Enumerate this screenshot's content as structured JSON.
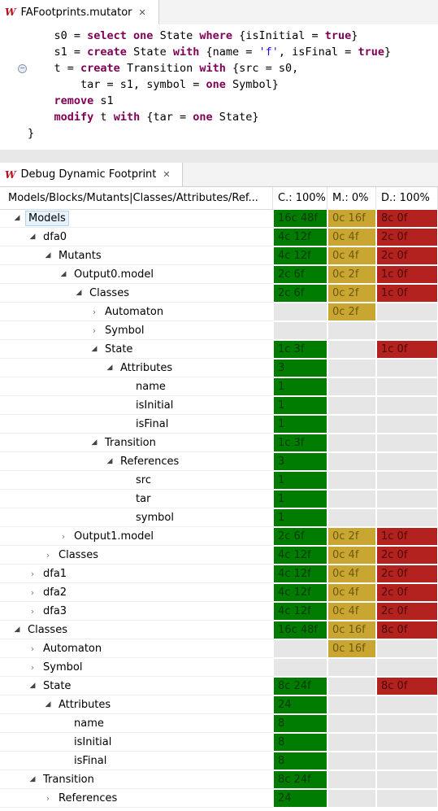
{
  "editor": {
    "tab_title": "FAFootprints.mutator",
    "lines": [
      [
        {
          "t": "    s0 = ",
          "c": ""
        },
        {
          "t": "select one",
          "c": "kw"
        },
        {
          "t": " State ",
          "c": ""
        },
        {
          "t": "where",
          "c": "kw"
        },
        {
          "t": " {isInitial = ",
          "c": ""
        },
        {
          "t": "true",
          "c": "kw"
        },
        {
          "t": "}",
          "c": ""
        }
      ],
      [
        {
          "t": "    s1 = ",
          "c": ""
        },
        {
          "t": "create",
          "c": "kw"
        },
        {
          "t": " State ",
          "c": ""
        },
        {
          "t": "with",
          "c": "kw"
        },
        {
          "t": " {name = ",
          "c": ""
        },
        {
          "t": "'f'",
          "c": "str"
        },
        {
          "t": ", isFinal = ",
          "c": ""
        },
        {
          "t": "true",
          "c": "kw"
        },
        {
          "t": "}",
          "c": ""
        }
      ],
      [
        {
          "t": "    t = ",
          "c": ""
        },
        {
          "t": "create",
          "c": "kw"
        },
        {
          "t": " Transition ",
          "c": ""
        },
        {
          "t": "with",
          "c": "kw"
        },
        {
          "t": " {src = s0,",
          "c": ""
        }
      ],
      [
        {
          "t": "        tar = s1, symbol = ",
          "c": ""
        },
        {
          "t": "one",
          "c": "kw"
        },
        {
          "t": " Symbol}",
          "c": ""
        }
      ],
      [
        {
          "t": "    ",
          "c": ""
        },
        {
          "t": "remove",
          "c": "kw"
        },
        {
          "t": " s1",
          "c": ""
        }
      ],
      [
        {
          "t": "    ",
          "c": ""
        },
        {
          "t": "modify",
          "c": "kw"
        },
        {
          "t": " t ",
          "c": ""
        },
        {
          "t": "with",
          "c": "kw"
        },
        {
          "t": " {tar = ",
          "c": ""
        },
        {
          "t": "one",
          "c": "kw"
        },
        {
          "t": " State}",
          "c": ""
        }
      ],
      [
        {
          "t": "}",
          "c": ""
        }
      ]
    ]
  },
  "view": {
    "tab_title": "Debug Dynamic Footprint",
    "columns": {
      "name": "Models/Blocks/Mutants|Classes/Attributes/Ref...",
      "c": "C.: 100%",
      "m": "M.: 0%",
      "d": "D.: 100%"
    }
  },
  "colors": {
    "green": "#007d00",
    "yellow": "#c8a631",
    "red": "#b3221f",
    "empty": "#e6e6e6"
  },
  "rows": [
    {
      "name": "Models",
      "depth": 0,
      "tw": "open",
      "selected": true,
      "c": "16c 48f",
      "m": "0c 16f",
      "d": "8c 0f"
    },
    {
      "name": "dfa0",
      "depth": 1,
      "tw": "open",
      "c": "4c 12f",
      "m": "0c 4f",
      "d": "2c 0f"
    },
    {
      "name": "Mutants",
      "depth": 2,
      "tw": "open",
      "c": "4c 12f",
      "m": "0c 4f",
      "d": "2c 0f"
    },
    {
      "name": "Output0.model",
      "depth": 3,
      "tw": "open",
      "c": "2c 6f",
      "m": "0c 2f",
      "d": "1c 0f"
    },
    {
      "name": "Classes",
      "depth": 4,
      "tw": "open",
      "c": "2c 6f",
      "m": "0c 2f",
      "d": "1c 0f"
    },
    {
      "name": "Automaton",
      "depth": 5,
      "tw": "closed",
      "c": "",
      "m": "0c 2f",
      "d": ""
    },
    {
      "name": "Symbol",
      "depth": 5,
      "tw": "closed",
      "c": "",
      "m": "",
      "d": ""
    },
    {
      "name": "State",
      "depth": 5,
      "tw": "open",
      "c": "1c 3f",
      "m": "",
      "d": "1c 0f"
    },
    {
      "name": "Attributes",
      "depth": 6,
      "tw": "open",
      "c": "3",
      "m": "",
      "d": ""
    },
    {
      "name": "name",
      "depth": 7,
      "tw": "none",
      "c": "1",
      "m": "",
      "d": ""
    },
    {
      "name": "isInitial",
      "depth": 7,
      "tw": "none",
      "c": "1",
      "m": "",
      "d": ""
    },
    {
      "name": "isFinal",
      "depth": 7,
      "tw": "none",
      "c": "1",
      "m": "",
      "d": ""
    },
    {
      "name": "Transition",
      "depth": 5,
      "tw": "open",
      "c": "1c 3f",
      "m": "",
      "d": ""
    },
    {
      "name": "References",
      "depth": 6,
      "tw": "open",
      "c": "3",
      "m": "",
      "d": ""
    },
    {
      "name": "src",
      "depth": 7,
      "tw": "none",
      "c": "1",
      "m": "",
      "d": ""
    },
    {
      "name": "tar",
      "depth": 7,
      "tw": "none",
      "c": "1",
      "m": "",
      "d": ""
    },
    {
      "name": "symbol",
      "depth": 7,
      "tw": "none",
      "c": "1",
      "m": "",
      "d": ""
    },
    {
      "name": "Output1.model",
      "depth": 3,
      "tw": "closed",
      "c": "2c 6f",
      "m": "0c 2f",
      "d": "1c 0f"
    },
    {
      "name": "Classes",
      "depth": 2,
      "tw": "closed",
      "c": "4c 12f",
      "m": "0c 4f",
      "d": "2c 0f"
    },
    {
      "name": "dfa1",
      "depth": 1,
      "tw": "closed",
      "c": "4c 12f",
      "m": "0c 4f",
      "d": "2c 0f"
    },
    {
      "name": "dfa2",
      "depth": 1,
      "tw": "closed",
      "c": "4c 12f",
      "m": "0c 4f",
      "d": "2c 0f"
    },
    {
      "name": "dfa3",
      "depth": 1,
      "tw": "closed",
      "c": "4c 12f",
      "m": "0c 4f",
      "d": "2c 0f"
    },
    {
      "name": "Classes",
      "depth": 0,
      "tw": "open",
      "c": "16c 48f",
      "m": "0c 16f",
      "d": "8c 0f"
    },
    {
      "name": "Automaton",
      "depth": 1,
      "tw": "closed",
      "c": "",
      "m": "0c 16f",
      "d": ""
    },
    {
      "name": "Symbol",
      "depth": 1,
      "tw": "closed",
      "c": "",
      "m": "",
      "d": ""
    },
    {
      "name": "State",
      "depth": 1,
      "tw": "open",
      "c": "8c 24f",
      "m": "",
      "d": "8c 0f"
    },
    {
      "name": "Attributes",
      "depth": 2,
      "tw": "open",
      "c": "24",
      "m": "",
      "d": ""
    },
    {
      "name": "name",
      "depth": 3,
      "tw": "none",
      "c": "8",
      "m": "",
      "d": ""
    },
    {
      "name": "isInitial",
      "depth": 3,
      "tw": "none",
      "c": "8",
      "m": "",
      "d": ""
    },
    {
      "name": "isFinal",
      "depth": 3,
      "tw": "none",
      "c": "8",
      "m": "",
      "d": ""
    },
    {
      "name": "Transition",
      "depth": 1,
      "tw": "open",
      "c": "8c 24f",
      "m": "",
      "d": ""
    },
    {
      "name": "References",
      "depth": 2,
      "tw": "closed",
      "c": "24",
      "m": "",
      "d": ""
    }
  ]
}
